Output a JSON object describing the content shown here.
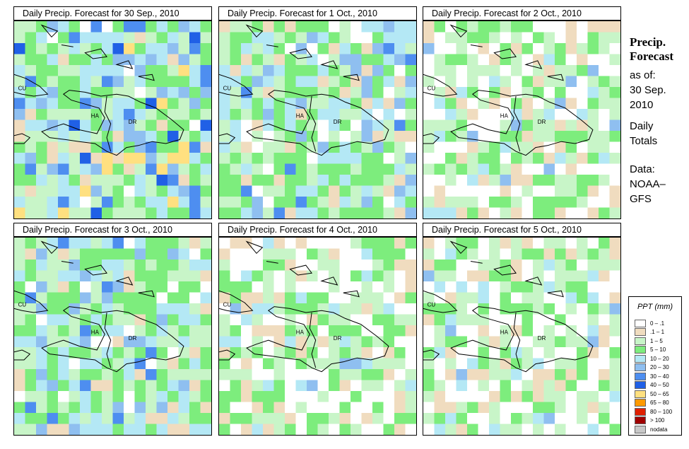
{
  "panels": [
    {
      "title": "Daily Precip. Forecast for 30 Sep., 2010",
      "seed": 11,
      "profile": "wet"
    },
    {
      "title": "Daily Precip. Forecast for  1 Oct., 2010",
      "seed": 23,
      "profile": "moderate"
    },
    {
      "title": "Daily Precip. Forecast for  2 Oct., 2010",
      "seed": 37,
      "profile": "dry"
    },
    {
      "title": "Daily Precip. Forecast for  3 Oct., 2010",
      "seed": 41,
      "profile": "moderate"
    },
    {
      "title": "Daily Precip. Forecast for  4 Oct., 2010",
      "seed": 53,
      "profile": "dry"
    },
    {
      "title": "Daily Precip. Forecast for  5 Oct., 2010",
      "seed": 67,
      "profile": "dry"
    }
  ],
  "country_labels": {
    "cuba": "CU",
    "haiti": "HA",
    "dominican_republic": "DR"
  },
  "sidebar": {
    "title_line1": "Precip.",
    "title_line2": "Forecast",
    "asof_label": "as of:",
    "date_line1": "30 Sep.",
    "date_line2": "2010",
    "totals_line1": "Daily",
    "totals_line2": "Totals",
    "source_line1": "Data:",
    "source_line2": "NOAA–",
    "source_line3": "GFS"
  },
  "legend": {
    "title": "PPT (mm)",
    "items": [
      {
        "label": "0 – .1",
        "color": "#ffffff"
      },
      {
        "label": ".1 – 1",
        "color": "#f0dcbf"
      },
      {
        "label": "1 – 5",
        "color": "#c8f5c8"
      },
      {
        "label": "5 – 10",
        "color": "#7ded7d"
      },
      {
        "label": "10 – 20",
        "color": "#b4e8f5"
      },
      {
        "label": "20 – 30",
        "color": "#8fbff0"
      },
      {
        "label": "30 – 40",
        "color": "#4e8ef0"
      },
      {
        "label": "40 – 50",
        "color": "#2060e6"
      },
      {
        "label": "50 – 65",
        "color": "#ffe080"
      },
      {
        "label": "65 – 80",
        "color": "#ff9a00"
      },
      {
        "label": "80 – 100",
        "color": "#e02000"
      },
      {
        "label": "> 100",
        "color": "#a00000"
      },
      {
        "label": "nodata",
        "color": "#c8c8c8"
      }
    ]
  }
}
